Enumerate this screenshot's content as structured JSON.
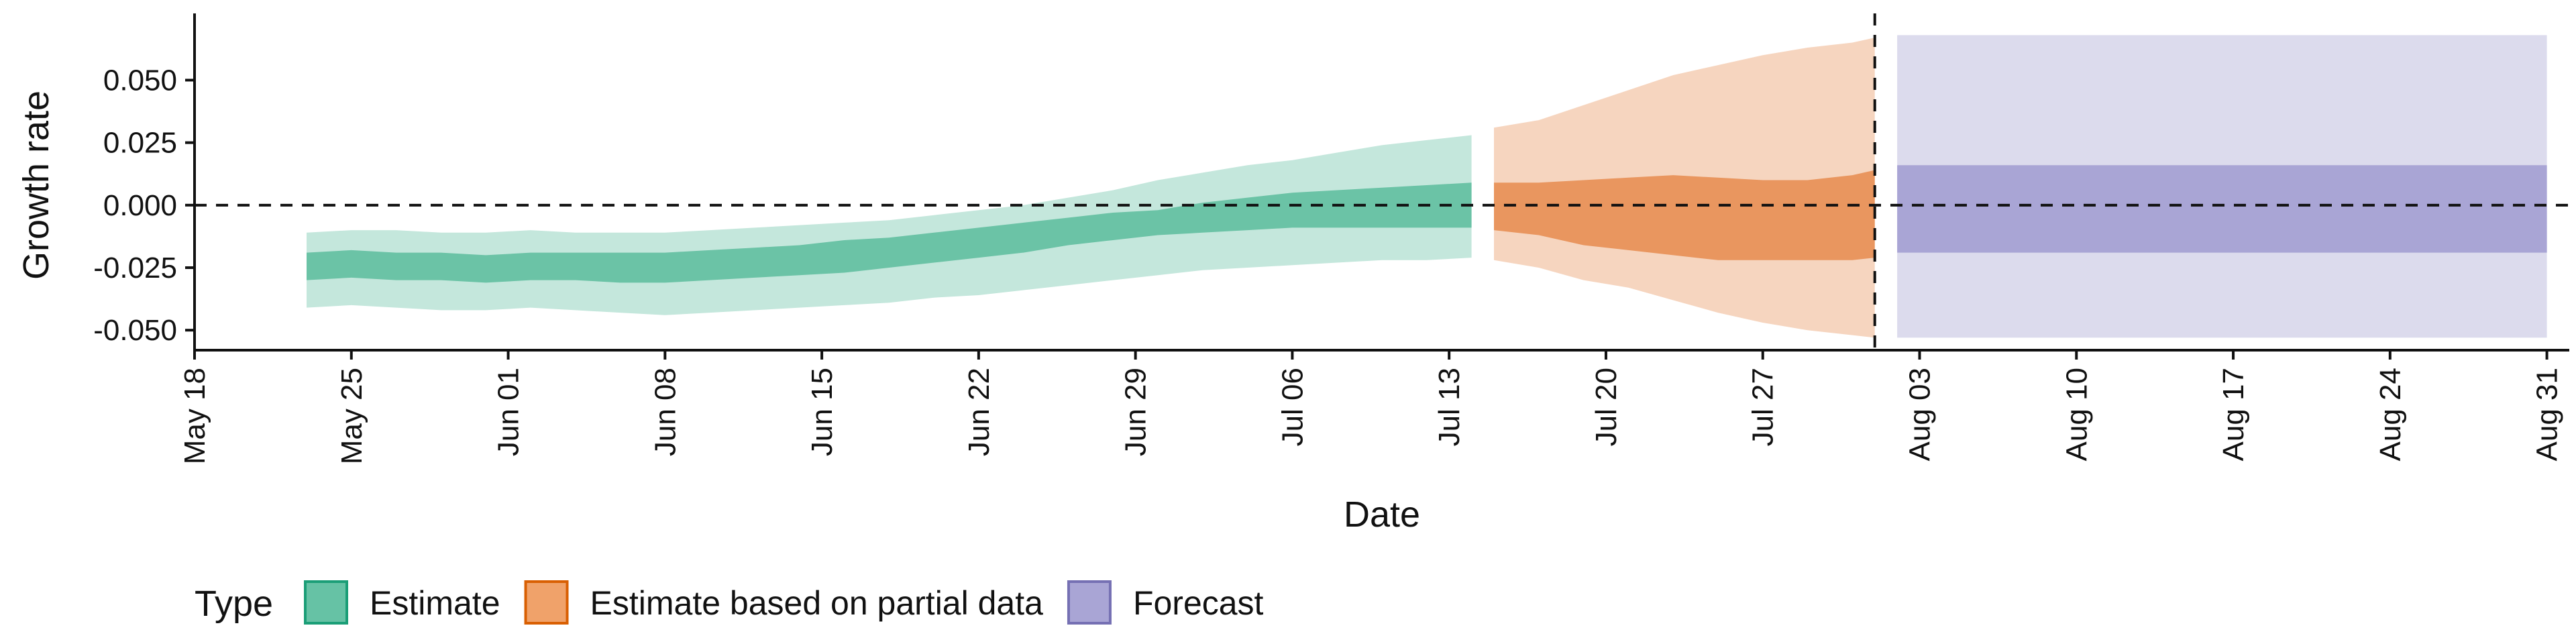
{
  "chart_data": {
    "type": "area",
    "xlabel": "Date",
    "ylabel": "Growth rate",
    "x_ticks": [
      "2020-05-18",
      "2020-05-25",
      "2020-06-01",
      "2020-06-08",
      "2020-06-15",
      "2020-06-22",
      "2020-06-29",
      "2020-07-06",
      "2020-07-13",
      "2020-07-20",
      "2020-07-27",
      "2020-08-03",
      "2020-08-10",
      "2020-08-17",
      "2020-08-24",
      "2020-08-31"
    ],
    "x_tick_labels": [
      "May 18",
      "May 25",
      "Jun 01",
      "Jun 08",
      "Jun 15",
      "Jun 22",
      "Jun 29",
      "Jul 06",
      "Jul 13",
      "Jul 20",
      "Jul 27",
      "Aug 03",
      "Aug 10",
      "Aug 17",
      "Aug 24",
      "Aug 31"
    ],
    "y_ticks": [
      -0.05,
      -0.025,
      0,
      0.025,
      0.05
    ],
    "y_tick_labels": [
      "-0.050",
      "-0.025",
      "0.000",
      "0.025",
      "0.050"
    ],
    "xlim": [
      "2020-05-18",
      "2020-09-01"
    ],
    "ylim": [
      -0.058,
      0.074
    ],
    "grid": false,
    "reference_lines": {
      "y": 0,
      "x": "2020-08-01"
    },
    "legend": {
      "title": "Type",
      "position": "bottom",
      "items": [
        {
          "label": "Estimate",
          "fill": "#66c2a5",
          "stroke": "#1b9e77"
        },
        {
          "label": "Estimate based on partial data",
          "fill": "#f0a26a",
          "stroke": "#d95f02"
        },
        {
          "label": "Forecast",
          "fill": "#a9a5d5",
          "stroke": "#7570b3"
        }
      ]
    },
    "series": [
      {
        "name": "Estimate",
        "outer_color": "#c4e7dc",
        "inner_color": "#6bc3a6",
        "x": [
          "2020-05-23",
          "2020-05-25",
          "2020-05-27",
          "2020-05-29",
          "2020-05-31",
          "2020-06-02",
          "2020-06-04",
          "2020-06-06",
          "2020-06-08",
          "2020-06-10",
          "2020-06-12",
          "2020-06-14",
          "2020-06-16",
          "2020-06-18",
          "2020-06-20",
          "2020-06-22",
          "2020-06-24",
          "2020-06-26",
          "2020-06-28",
          "2020-06-30",
          "2020-07-02",
          "2020-07-04",
          "2020-07-06",
          "2020-07-08",
          "2020-07-10",
          "2020-07-12",
          "2020-07-14"
        ],
        "outer_lower": [
          -0.041,
          -0.04,
          -0.041,
          -0.042,
          -0.042,
          -0.041,
          -0.042,
          -0.043,
          -0.044,
          -0.043,
          -0.042,
          -0.041,
          -0.04,
          -0.039,
          -0.037,
          -0.036,
          -0.034,
          -0.032,
          -0.03,
          -0.028,
          -0.026,
          -0.025,
          -0.024,
          -0.023,
          -0.022,
          -0.022,
          -0.021
        ],
        "outer_upper": [
          -0.011,
          -0.01,
          -0.01,
          -0.011,
          -0.011,
          -0.01,
          -0.011,
          -0.011,
          -0.011,
          -0.01,
          -0.009,
          -0.008,
          -0.007,
          -0.006,
          -0.004,
          -0.002,
          0.0,
          0.003,
          0.006,
          0.01,
          0.013,
          0.016,
          0.018,
          0.021,
          0.024,
          0.026,
          0.028
        ],
        "inner_lower": [
          -0.03,
          -0.029,
          -0.03,
          -0.03,
          -0.031,
          -0.03,
          -0.03,
          -0.031,
          -0.031,
          -0.03,
          -0.029,
          -0.028,
          -0.027,
          -0.025,
          -0.023,
          -0.021,
          -0.019,
          -0.016,
          -0.014,
          -0.012,
          -0.011,
          -0.01,
          -0.009,
          -0.009,
          -0.009,
          -0.009,
          -0.009
        ],
        "inner_upper": [
          -0.019,
          -0.018,
          -0.019,
          -0.019,
          -0.02,
          -0.019,
          -0.019,
          -0.019,
          -0.019,
          -0.018,
          -0.017,
          -0.016,
          -0.014,
          -0.013,
          -0.011,
          -0.009,
          -0.007,
          -0.005,
          -0.003,
          -0.002,
          0.001,
          0.003,
          0.005,
          0.006,
          0.007,
          0.008,
          0.009
        ]
      },
      {
        "name": "Estimate based on partial data",
        "outer_color": "#f6d5bf",
        "inner_color": "#e9965f",
        "x": [
          "2020-07-15",
          "2020-07-17",
          "2020-07-19",
          "2020-07-21",
          "2020-07-23",
          "2020-07-25",
          "2020-07-27",
          "2020-07-29",
          "2020-07-31",
          "2020-08-01"
        ],
        "outer_lower": [
          -0.022,
          -0.025,
          -0.03,
          -0.033,
          -0.038,
          -0.043,
          -0.047,
          -0.05,
          -0.052,
          -0.053
        ],
        "outer_upper": [
          0.031,
          0.034,
          0.04,
          0.046,
          0.052,
          0.056,
          0.06,
          0.063,
          0.065,
          0.067
        ],
        "inner_lower": [
          -0.01,
          -0.012,
          -0.016,
          -0.018,
          -0.02,
          -0.022,
          -0.022,
          -0.022,
          -0.022,
          -0.021
        ],
        "inner_upper": [
          0.009,
          0.009,
          0.01,
          0.011,
          0.012,
          0.011,
          0.01,
          0.01,
          0.012,
          0.014
        ]
      },
      {
        "name": "Forecast",
        "outer_color": "#dcdbed",
        "inner_color": "#a9a5d5",
        "x": [
          "2020-08-02",
          "2020-08-31"
        ],
        "outer_lower": [
          -0.053,
          -0.053
        ],
        "outer_upper": [
          0.068,
          0.068
        ],
        "inner_lower": [
          -0.019,
          -0.019
        ],
        "inner_upper": [
          0.016,
          0.016
        ]
      }
    ]
  }
}
